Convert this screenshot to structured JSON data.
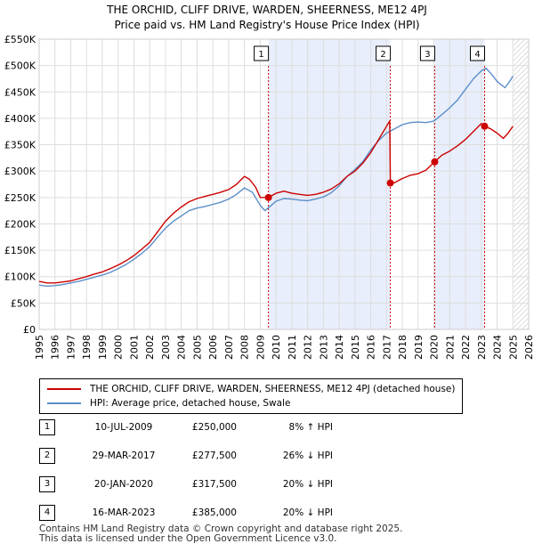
{
  "chart_data": {
    "type": "line",
    "title": "THE ORCHID, CLIFF DRIVE, WARDEN, SHEERNESS, ME12 4PJ",
    "subtitle": "Price paid vs. HM Land Registry's House Price Index (HPI)",
    "xlim": [
      1995,
      2026
    ],
    "ylim": [
      0,
      550000
    ],
    "x_ticks": [
      "1995",
      "1996",
      "1997",
      "1998",
      "1999",
      "2000",
      "2001",
      "2002",
      "2003",
      "2004",
      "2005",
      "2006",
      "2007",
      "2008",
      "2009",
      "2010",
      "2011",
      "2012",
      "2013",
      "2014",
      "2015",
      "2016",
      "2017",
      "2018",
      "2019",
      "2020",
      "2021",
      "2022",
      "2023",
      "2024",
      "2025",
      "2026"
    ],
    "y_ticks": [
      {
        "value": 0,
        "label": "£0"
      },
      {
        "value": 50000,
        "label": "£50K"
      },
      {
        "value": 100000,
        "label": "£100K"
      },
      {
        "value": 150000,
        "label": "£150K"
      },
      {
        "value": 200000,
        "label": "£200K"
      },
      {
        "value": 250000,
        "label": "£250K"
      },
      {
        "value": 300000,
        "label": "£300K"
      },
      {
        "value": 350000,
        "label": "£350K"
      },
      {
        "value": 400000,
        "label": "£400K"
      },
      {
        "value": 450000,
        "label": "£450K"
      },
      {
        "value": 500000,
        "label": "£500K"
      },
      {
        "value": 550000,
        "label": "£550K"
      }
    ],
    "grid": true,
    "shaded_ranges": [
      [
        2009.52,
        2017.24
      ],
      [
        2020.05,
        2023.21
      ]
    ],
    "future_hatch_from": 2025.05,
    "series": [
      {
        "name": "THE ORCHID, CLIFF DRIVE, WARDEN, SHEERNESS, ME12 4PJ (detached house)",
        "color": "#cc0000",
        "points": [
          [
            1995.0,
            91000
          ],
          [
            1995.5,
            88000
          ],
          [
            1996.0,
            88000
          ],
          [
            1996.5,
            90000
          ],
          [
            1997.0,
            92000
          ],
          [
            1997.5,
            96000
          ],
          [
            1998.0,
            100000
          ],
          [
            1998.5,
            105000
          ],
          [
            1999.0,
            109000
          ],
          [
            1999.5,
            115000
          ],
          [
            2000.0,
            122000
          ],
          [
            2000.5,
            130000
          ],
          [
            2001.0,
            140000
          ],
          [
            2001.5,
            152000
          ],
          [
            2002.0,
            165000
          ],
          [
            2002.5,
            185000
          ],
          [
            2003.0,
            205000
          ],
          [
            2003.5,
            220000
          ],
          [
            2004.0,
            232000
          ],
          [
            2004.5,
            242000
          ],
          [
            2005.0,
            248000
          ],
          [
            2005.5,
            252000
          ],
          [
            2006.0,
            256000
          ],
          [
            2006.5,
            260000
          ],
          [
            2007.0,
            265000
          ],
          [
            2007.5,
            275000
          ],
          [
            2008.0,
            290000
          ],
          [
            2008.3,
            285000
          ],
          [
            2008.7,
            270000
          ],
          [
            2009.0,
            250000
          ],
          [
            2009.52,
            250000
          ],
          [
            2010.0,
            258000
          ],
          [
            2010.5,
            262000
          ],
          [
            2011.0,
            258000
          ],
          [
            2011.5,
            256000
          ],
          [
            2012.0,
            254000
          ],
          [
            2012.5,
            256000
          ],
          [
            2013.0,
            260000
          ],
          [
            2013.5,
            266000
          ],
          [
            2014.0,
            276000
          ],
          [
            2014.5,
            290000
          ],
          [
            2015.0,
            300000
          ],
          [
            2015.5,
            315000
          ],
          [
            2016.0,
            335000
          ],
          [
            2016.5,
            360000
          ],
          [
            2017.0,
            385000
          ],
          [
            2017.2,
            395000
          ],
          [
            2017.24,
            277500
          ],
          [
            2017.5,
            278000
          ],
          [
            2018.0,
            286000
          ],
          [
            2018.5,
            292000
          ],
          [
            2019.0,
            295000
          ],
          [
            2019.5,
            302000
          ],
          [
            2020.05,
            317500
          ],
          [
            2020.5,
            330000
          ],
          [
            2021.0,
            338000
          ],
          [
            2021.5,
            348000
          ],
          [
            2022.0,
            360000
          ],
          [
            2022.5,
            375000
          ],
          [
            2023.0,
            390000
          ],
          [
            2023.21,
            385000
          ],
          [
            2023.6,
            380000
          ],
          [
            2024.0,
            372000
          ],
          [
            2024.4,
            362000
          ],
          [
            2024.7,
            372000
          ],
          [
            2025.0,
            385000
          ]
        ]
      },
      {
        "name": "HPI: Average price, detached house, Swale",
        "color": "#5b8ec9",
        "points": [
          [
            1995.0,
            84000
          ],
          [
            1995.5,
            82000
          ],
          [
            1996.0,
            83000
          ],
          [
            1996.5,
            85000
          ],
          [
            1997.0,
            88000
          ],
          [
            1997.5,
            91000
          ],
          [
            1998.0,
            95000
          ],
          [
            1998.5,
            99000
          ],
          [
            1999.0,
            103000
          ],
          [
            1999.5,
            108000
          ],
          [
            2000.0,
            115000
          ],
          [
            2000.5,
            123000
          ],
          [
            2001.0,
            133000
          ],
          [
            2001.5,
            144000
          ],
          [
            2002.0,
            157000
          ],
          [
            2002.5,
            175000
          ],
          [
            2003.0,
            192000
          ],
          [
            2003.5,
            205000
          ],
          [
            2004.0,
            215000
          ],
          [
            2004.5,
            225000
          ],
          [
            2005.0,
            230000
          ],
          [
            2005.5,
            233000
          ],
          [
            2006.0,
            237000
          ],
          [
            2006.5,
            241000
          ],
          [
            2007.0,
            247000
          ],
          [
            2007.5,
            256000
          ],
          [
            2008.0,
            268000
          ],
          [
            2008.5,
            260000
          ],
          [
            2009.0,
            235000
          ],
          [
            2009.3,
            225000
          ],
          [
            2009.7,
            235000
          ],
          [
            2010.0,
            243000
          ],
          [
            2010.5,
            248000
          ],
          [
            2011.0,
            247000
          ],
          [
            2011.5,
            245000
          ],
          [
            2012.0,
            244000
          ],
          [
            2012.5,
            247000
          ],
          [
            2013.0,
            251000
          ],
          [
            2013.5,
            259000
          ],
          [
            2014.0,
            272000
          ],
          [
            2014.5,
            290000
          ],
          [
            2015.0,
            303000
          ],
          [
            2015.5,
            318000
          ],
          [
            2016.0,
            340000
          ],
          [
            2016.5,
            358000
          ],
          [
            2017.0,
            372000
          ],
          [
            2017.5,
            380000
          ],
          [
            2018.0,
            388000
          ],
          [
            2018.5,
            392000
          ],
          [
            2019.0,
            393000
          ],
          [
            2019.5,
            392000
          ],
          [
            2020.0,
            395000
          ],
          [
            2020.5,
            407000
          ],
          [
            2021.0,
            420000
          ],
          [
            2021.5,
            435000
          ],
          [
            2022.0,
            455000
          ],
          [
            2022.5,
            475000
          ],
          [
            2023.0,
            490000
          ],
          [
            2023.3,
            495000
          ],
          [
            2023.7,
            482000
          ],
          [
            2024.0,
            470000
          ],
          [
            2024.5,
            458000
          ],
          [
            2024.8,
            470000
          ],
          [
            2025.0,
            480000
          ]
        ]
      }
    ],
    "sales": [
      {
        "num": "1",
        "x": 2009.52,
        "value": 250000
      },
      {
        "num": "2",
        "x": 2017.24,
        "value": 277500
      },
      {
        "num": "3",
        "x": 2020.05,
        "value": 317500
      },
      {
        "num": "4",
        "x": 2023.21,
        "value": 385000
      }
    ]
  },
  "title": {
    "line1": "THE ORCHID, CLIFF DRIVE, WARDEN, SHEERNESS, ME12 4PJ",
    "line2": "Price paid vs. HM Land Registry's House Price Index (HPI)"
  },
  "legend": {
    "property_label": "THE ORCHID, CLIFF DRIVE, WARDEN, SHEERNESS, ME12 4PJ (detached house)",
    "hpi_label": "HPI: Average price, detached house, Swale",
    "property_color": "#cc0000",
    "hpi_color": "#5b8ec9"
  },
  "sales_table": [
    {
      "num": "1",
      "date": "10-JUL-2009",
      "price": "£250,000",
      "hpi": "8% ↑ HPI"
    },
    {
      "num": "2",
      "date": "29-MAR-2017",
      "price": "£277,500",
      "hpi": "26% ↓ HPI"
    },
    {
      "num": "3",
      "date": "20-JAN-2020",
      "price": "£317,500",
      "hpi": "20% ↓ HPI"
    },
    {
      "num": "4",
      "date": "16-MAR-2023",
      "price": "£385,000",
      "hpi": "20% ↓ HPI"
    }
  ],
  "footer": {
    "line1": "Contains HM Land Registry data © Crown copyright and database right 2025.",
    "line2": "This data is licensed under the Open Government Licence v3.0."
  }
}
